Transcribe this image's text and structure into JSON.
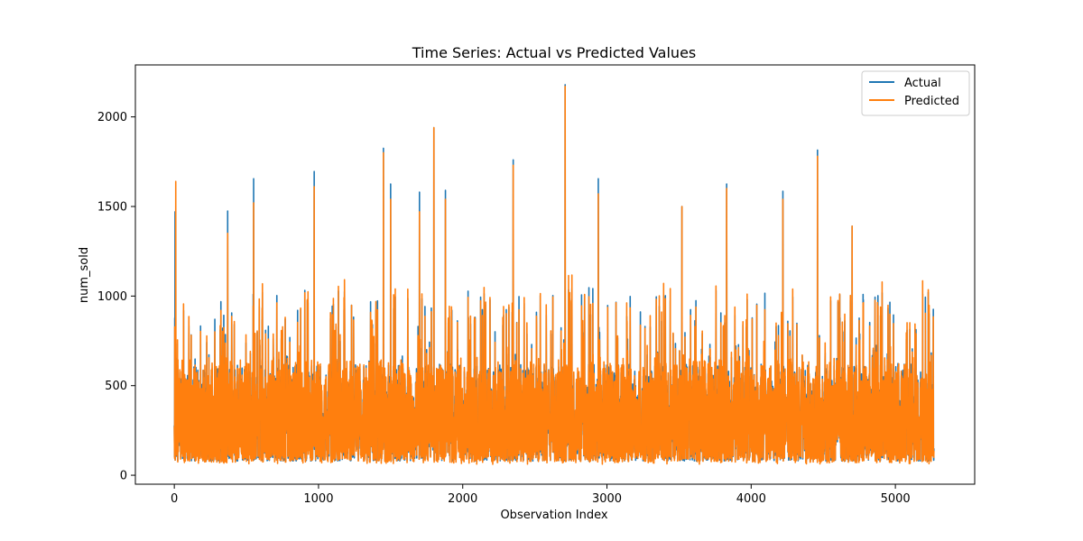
{
  "chart_data": {
    "type": "line",
    "title": "Time Series: Actual vs Predicted Values",
    "xlabel": "Observation Index",
    "ylabel": "num_sold",
    "xlim": [
      -270,
      5550
    ],
    "ylim": [
      -50,
      2290
    ],
    "xticks": [
      0,
      1000,
      2000,
      3000,
      4000,
      5000
    ],
    "yticks": [
      0,
      500,
      1000,
      1500,
      2000
    ],
    "grid": false,
    "legend": "top-right",
    "n_points": 5268,
    "series": [
      {
        "name": "Actual",
        "color": "#1f77b4",
        "peaks": [
          [
            5,
            1470
          ],
          [
            370,
            1475
          ],
          [
            550,
            1655
          ],
          [
            970,
            1695
          ],
          [
            1450,
            1825
          ],
          [
            1500,
            1625
          ],
          [
            1700,
            1580
          ],
          [
            1800,
            1940
          ],
          [
            1880,
            1590
          ],
          [
            2350,
            1760
          ],
          [
            2710,
            2180
          ],
          [
            2940,
            1655
          ],
          [
            3520,
            1500
          ],
          [
            3830,
            1625
          ],
          [
            4220,
            1585
          ],
          [
            4460,
            1815
          ],
          [
            4700,
            1390
          ]
        ],
        "typical_range": [
          80,
          1000
        ]
      },
      {
        "name": "Predicted",
        "color": "#ff7f0e",
        "peaks": [
          [
            10,
            1640
          ],
          [
            370,
            1350
          ],
          [
            550,
            1520
          ],
          [
            970,
            1610
          ],
          [
            1450,
            1800
          ],
          [
            1500,
            1540
          ],
          [
            1700,
            1470
          ],
          [
            1800,
            1940
          ],
          [
            1880,
            1540
          ],
          [
            2350,
            1730
          ],
          [
            2710,
            2170
          ],
          [
            2940,
            1570
          ],
          [
            3520,
            1500
          ],
          [
            3830,
            1600
          ],
          [
            4220,
            1540
          ],
          [
            4460,
            1780
          ],
          [
            4700,
            1390
          ]
        ],
        "typical_range": [
          60,
          1000
        ]
      }
    ]
  }
}
